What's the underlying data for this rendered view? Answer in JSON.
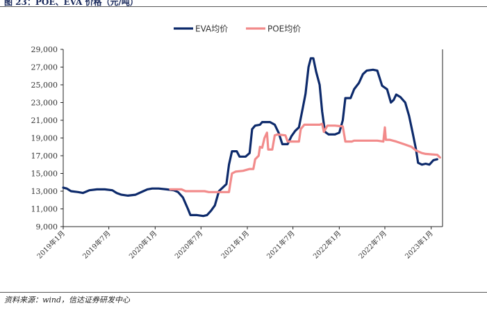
{
  "header": {
    "title": "图 23：POE、EVA 价格（元/吨）"
  },
  "footer": {
    "source": "资料来源：wind，信达证券研发中心"
  },
  "chart_data": {
    "type": "line",
    "ylim": [
      9000,
      29000
    ],
    "yticks": [
      "9,000",
      "11,000",
      "13,000",
      "15,000",
      "17,000",
      "19,000",
      "21,000",
      "23,000",
      "25,000",
      "27,000",
      "29,000"
    ],
    "xlim": [
      "2019-01-01",
      "2023-02-15"
    ],
    "xticks": [
      {
        "date": "2019-01-01",
        "label": "2019年1月"
      },
      {
        "date": "2019-07-01",
        "label": "2019年7月"
      },
      {
        "date": "2020-01-01",
        "label": "2020年1月"
      },
      {
        "date": "2020-07-01",
        "label": "2020年7月"
      },
      {
        "date": "2021-01-01",
        "label": "2021年1月"
      },
      {
        "date": "2021-07-01",
        "label": "2021年7月"
      },
      {
        "date": "2022-01-01",
        "label": "2022年1月"
      },
      {
        "date": "2022-07-01",
        "label": "2022年7月"
      },
      {
        "date": "2023-01-01",
        "label": "2023年1月"
      }
    ],
    "legend_position": "top-center",
    "grid": false,
    "series": [
      {
        "name": "EVA均价",
        "color": "#0d2a6b",
        "points": [
          [
            "2019-01-01",
            13400
          ],
          [
            "2019-01-15",
            13300
          ],
          [
            "2019-02-01",
            13000
          ],
          [
            "2019-03-01",
            12900
          ],
          [
            "2019-03-20",
            12800
          ],
          [
            "2019-04-15",
            13100
          ],
          [
            "2019-05-15",
            13200
          ],
          [
            "2019-06-15",
            13200
          ],
          [
            "2019-07-15",
            13100
          ],
          [
            "2019-08-01",
            12800
          ],
          [
            "2019-08-20",
            12600
          ],
          [
            "2019-09-15",
            12500
          ],
          [
            "2019-10-15",
            12600
          ],
          [
            "2019-11-15",
            13000
          ],
          [
            "2019-12-01",
            13200
          ],
          [
            "2019-12-20",
            13300
          ],
          [
            "2020-01-15",
            13300
          ],
          [
            "2020-02-15",
            13200
          ],
          [
            "2020-03-15",
            13100
          ],
          [
            "2020-04-01",
            12900
          ],
          [
            "2020-04-20",
            12300
          ],
          [
            "2020-05-10",
            11000
          ],
          [
            "2020-05-20",
            10300
          ],
          [
            "2020-06-15",
            10300
          ],
          [
            "2020-07-10",
            10200
          ],
          [
            "2020-07-25",
            10300
          ],
          [
            "2020-08-10",
            10800
          ],
          [
            "2020-08-25",
            11400
          ],
          [
            "2020-09-10",
            13000
          ],
          [
            "2020-09-25",
            13400
          ],
          [
            "2020-10-10",
            13800
          ],
          [
            "2020-10-20",
            16000
          ],
          [
            "2020-11-01",
            17500
          ],
          [
            "2020-11-20",
            17500
          ],
          [
            "2020-12-01",
            16900
          ],
          [
            "2020-12-25",
            16900
          ],
          [
            "2021-01-10",
            17300
          ],
          [
            "2021-01-20",
            20000
          ],
          [
            "2021-02-01",
            20400
          ],
          [
            "2021-02-20",
            20500
          ],
          [
            "2021-03-01",
            20800
          ],
          [
            "2021-04-01",
            20800
          ],
          [
            "2021-04-20",
            20500
          ],
          [
            "2021-05-05",
            19600
          ],
          [
            "2021-05-20",
            18300
          ],
          [
            "2021-06-10",
            18300
          ],
          [
            "2021-06-25",
            19200
          ],
          [
            "2021-07-10",
            19800
          ],
          [
            "2021-07-25",
            20200
          ],
          [
            "2021-08-10",
            22500
          ],
          [
            "2021-08-20",
            24000
          ],
          [
            "2021-09-01",
            27000
          ],
          [
            "2021-09-10",
            28000
          ],
          [
            "2021-09-20",
            28000
          ],
          [
            "2021-10-01",
            26500
          ],
          [
            "2021-10-15",
            25000
          ],
          [
            "2021-10-25",
            22000
          ],
          [
            "2021-11-05",
            19700
          ],
          [
            "2021-11-20",
            19400
          ],
          [
            "2021-12-15",
            19400
          ],
          [
            "2022-01-01",
            19600
          ],
          [
            "2022-01-15",
            21000
          ],
          [
            "2022-01-25",
            23500
          ],
          [
            "2022-02-15",
            23500
          ],
          [
            "2022-03-01",
            24500
          ],
          [
            "2022-03-20",
            25200
          ],
          [
            "2022-04-05",
            26200
          ],
          [
            "2022-04-20",
            26600
          ],
          [
            "2022-05-15",
            26700
          ],
          [
            "2022-06-01",
            26600
          ],
          [
            "2022-06-20",
            24900
          ],
          [
            "2022-07-10",
            24500
          ],
          [
            "2022-07-25",
            23000
          ],
          [
            "2022-08-05",
            23300
          ],
          [
            "2022-08-15",
            23900
          ],
          [
            "2022-09-01",
            23600
          ],
          [
            "2022-09-20",
            23000
          ],
          [
            "2022-10-05",
            21500
          ],
          [
            "2022-10-20",
            19500
          ],
          [
            "2022-11-01",
            17800
          ],
          [
            "2022-11-10",
            16200
          ],
          [
            "2022-11-25",
            16000
          ],
          [
            "2022-12-10",
            16100
          ],
          [
            "2022-12-25",
            16000
          ],
          [
            "2023-01-10",
            16500
          ],
          [
            "2023-01-25",
            16600
          ]
        ]
      },
      {
        "name": "POE均价",
        "color": "#f28b8b",
        "points": [
          [
            "2020-03-01",
            13200
          ],
          [
            "2020-04-15",
            13200
          ],
          [
            "2020-05-01",
            13000
          ],
          [
            "2020-07-15",
            13000
          ],
          [
            "2020-08-01",
            12900
          ],
          [
            "2020-09-01",
            12900
          ],
          [
            "2020-10-20",
            12900
          ],
          [
            "2020-10-25",
            13800
          ],
          [
            "2020-11-01",
            15000
          ],
          [
            "2020-11-15",
            15200
          ],
          [
            "2020-12-15",
            15300
          ],
          [
            "2021-01-10",
            15500
          ],
          [
            "2021-01-25",
            15500
          ],
          [
            "2021-02-01",
            16600
          ],
          [
            "2021-02-15",
            17000
          ],
          [
            "2021-02-20",
            18000
          ],
          [
            "2021-03-01",
            17900
          ],
          [
            "2021-03-10",
            19000
          ],
          [
            "2021-03-20",
            19600
          ],
          [
            "2021-03-25",
            17700
          ],
          [
            "2021-04-10",
            17700
          ],
          [
            "2021-04-20",
            19300
          ],
          [
            "2021-05-01",
            19400
          ],
          [
            "2021-06-01",
            19300
          ],
          [
            "2021-06-10",
            18600
          ],
          [
            "2021-07-25",
            18600
          ],
          [
            "2021-08-01",
            20000
          ],
          [
            "2021-08-15",
            20500
          ],
          [
            "2021-09-15",
            20500
          ],
          [
            "2021-10-15",
            20500
          ],
          [
            "2021-10-25",
            20600
          ],
          [
            "2021-11-01",
            19700
          ],
          [
            "2021-11-15",
            20400
          ],
          [
            "2021-12-15",
            20400
          ],
          [
            "2022-01-15",
            20300
          ],
          [
            "2022-01-25",
            18600
          ],
          [
            "2022-02-20",
            18600
          ],
          [
            "2022-03-01",
            18700
          ],
          [
            "2022-06-01",
            18700
          ],
          [
            "2022-06-25",
            18600
          ],
          [
            "2022-07-01",
            20200
          ],
          [
            "2022-07-05",
            18800
          ],
          [
            "2022-07-20",
            18800
          ],
          [
            "2022-08-15",
            18600
          ],
          [
            "2022-09-15",
            18300
          ],
          [
            "2022-10-15",
            18000
          ],
          [
            "2022-11-01",
            17600
          ],
          [
            "2022-11-25",
            17300
          ],
          [
            "2022-12-10",
            17200
          ],
          [
            "2023-01-25",
            17100
          ],
          [
            "2023-02-05",
            16800
          ]
        ]
      }
    ]
  }
}
